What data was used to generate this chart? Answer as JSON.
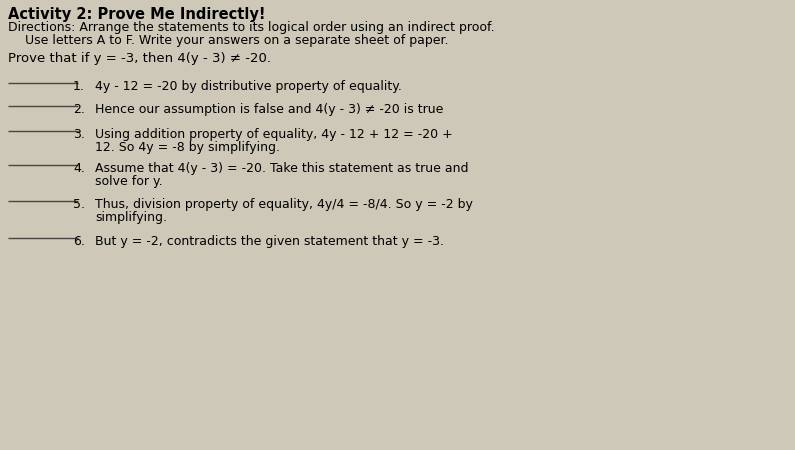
{
  "bg_color": "#cdc8b8",
  "title": "Activity 2: Prove Me Indirectly!",
  "directions_line1": "Directions: Arrange the statements to its logical order using an indirect proof.",
  "directions_line2": "Use letters A to F. Write your answers on a separate sheet of paper.",
  "prove_statement": "Prove that if y = -3, then 4(y - 3) ≠ -20.",
  "items": [
    {
      "num": "1",
      "text": "4y - 12 = -20 by distributive property of equality.",
      "line2": null
    },
    {
      "num": "2",
      "text": "Hence our assumption is false and 4(y - 3) ≠ -20 is true",
      "line2": null
    },
    {
      "num": "3",
      "text": "Using addition property of equality, 4y - 12 + 12 = -20 +",
      "line2": "12. So 4y = -8 by simplifying."
    },
    {
      "num": "4",
      "text": "Assume that 4(y - 3) = -20. Take this statement as true and",
      "line2": "solve for y."
    },
    {
      "num": "5",
      "text": "Thus, division property of equality, 4y/4 = -8/4. So y = -2 by",
      "line2": "simplifying."
    },
    {
      "num": "6",
      "text": "But y = -2, contradicts the given statement that y = -3.",
      "line2": null
    }
  ],
  "title_fontsize": 10.5,
  "body_fontsize": 9.0,
  "prove_fontsize": 9.5,
  "line_color": "#4a4540"
}
